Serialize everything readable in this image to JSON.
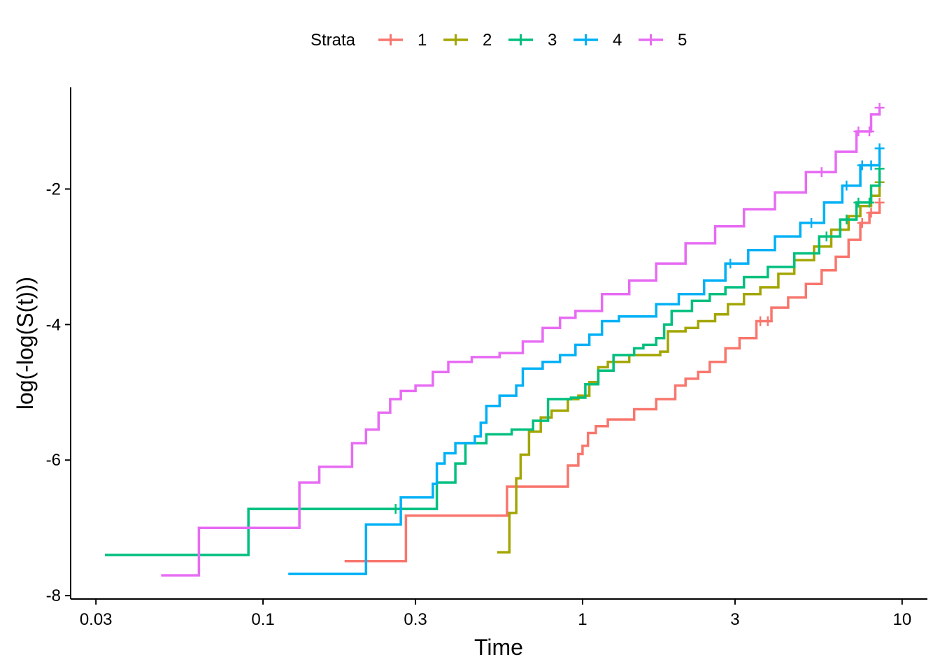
{
  "chart_data": {
    "type": "line",
    "step": true,
    "xlabel": "Time",
    "ylabel": "log(-log(S(t)))",
    "x_scale": "log10",
    "xlim": [
      0.025,
      12
    ],
    "ylim": [
      -8.05,
      -0.5
    ],
    "x_ticks": [
      0.03,
      0.1,
      0.3,
      1,
      3,
      10
    ],
    "x_tick_labels": [
      "0.03",
      "0.1",
      "0.3",
      "1",
      "3",
      "10"
    ],
    "y_ticks": [
      -8,
      -6,
      -4,
      -2
    ],
    "y_tick_labels": [
      "-8",
      "-6",
      "-4",
      "-2"
    ],
    "legend": {
      "title": "Strata",
      "position": "top",
      "entries": [
        "1",
        "2",
        "3",
        "4",
        "5"
      ]
    },
    "series": [
      {
        "name": "1",
        "color": "#F8766D",
        "points": [
          [
            0.18,
            -7.49
          ],
          [
            0.28,
            -6.82
          ],
          [
            0.58,
            -6.39
          ],
          [
            0.9,
            -6.08
          ],
          [
            0.97,
            -5.91
          ],
          [
            1.0,
            -5.79
          ],
          [
            1.04,
            -5.6
          ],
          [
            1.1,
            -5.5
          ],
          [
            1.2,
            -5.4
          ],
          [
            1.45,
            -5.25
          ],
          [
            1.7,
            -5.1
          ],
          [
            1.95,
            -4.9
          ],
          [
            2.1,
            -4.8
          ],
          [
            2.3,
            -4.7
          ],
          [
            2.5,
            -4.55
          ],
          [
            2.8,
            -4.35
          ],
          [
            3.1,
            -4.2
          ],
          [
            3.5,
            -3.95
          ],
          [
            3.9,
            -3.75
          ],
          [
            4.4,
            -3.6
          ],
          [
            5.0,
            -3.4
          ],
          [
            5.6,
            -3.2
          ],
          [
            6.2,
            -3.0
          ],
          [
            6.8,
            -2.75
          ],
          [
            7.4,
            -2.5
          ],
          [
            7.9,
            -2.35
          ],
          [
            8.5,
            -2.2
          ]
        ],
        "censor_x": [
          3.6,
          3.8,
          7.5,
          8.0,
          8.5
        ]
      },
      {
        "name": "2",
        "color": "#A3A500",
        "points": [
          [
            0.54,
            -7.36
          ],
          [
            0.59,
            -7.36
          ],
          [
            0.59,
            -6.78
          ],
          [
            0.62,
            -6.27
          ],
          [
            0.64,
            -5.92
          ],
          [
            0.68,
            -5.58
          ],
          [
            0.74,
            -5.37
          ],
          [
            0.8,
            -5.27
          ],
          [
            0.9,
            -5.1
          ],
          [
            0.97,
            -5.05
          ],
          [
            1.05,
            -4.85
          ],
          [
            1.12,
            -4.63
          ],
          [
            1.2,
            -4.55
          ],
          [
            1.4,
            -4.45
          ],
          [
            1.75,
            -4.4
          ],
          [
            1.85,
            -4.1
          ],
          [
            2.1,
            -4.05
          ],
          [
            2.3,
            -3.95
          ],
          [
            2.6,
            -3.85
          ],
          [
            2.85,
            -3.7
          ],
          [
            3.2,
            -3.55
          ],
          [
            3.6,
            -3.45
          ],
          [
            4.1,
            -3.25
          ],
          [
            4.6,
            -3.05
          ],
          [
            5.3,
            -2.85
          ],
          [
            6.0,
            -2.6
          ],
          [
            6.8,
            -2.4
          ],
          [
            7.4,
            -2.25
          ],
          [
            8.0,
            -2.1
          ],
          [
            8.5,
            -1.9
          ]
        ],
        "censor_x": [
          8.5
        ]
      },
      {
        "name": "3",
        "color": "#00BF7D",
        "points": [
          [
            0.032,
            -7.4
          ],
          [
            0.09,
            -7.4
          ],
          [
            0.09,
            -6.72
          ],
          [
            0.34,
            -6.72
          ],
          [
            0.35,
            -6.33
          ],
          [
            0.4,
            -6.05
          ],
          [
            0.43,
            -5.75
          ],
          [
            0.5,
            -5.62
          ],
          [
            0.6,
            -5.55
          ],
          [
            0.7,
            -5.42
          ],
          [
            0.78,
            -5.1
          ],
          [
            0.92,
            -5.08
          ],
          [
            1.02,
            -4.88
          ],
          [
            1.12,
            -4.68
          ],
          [
            1.25,
            -4.45
          ],
          [
            1.45,
            -4.35
          ],
          [
            1.55,
            -4.3
          ],
          [
            1.7,
            -4.2
          ],
          [
            1.8,
            -4.0
          ],
          [
            1.9,
            -3.8
          ],
          [
            2.2,
            -3.65
          ],
          [
            2.5,
            -3.55
          ],
          [
            2.8,
            -3.45
          ],
          [
            3.2,
            -3.3
          ],
          [
            3.8,
            -3.15
          ],
          [
            4.6,
            -2.95
          ],
          [
            5.5,
            -2.7
          ],
          [
            6.4,
            -2.45
          ],
          [
            7.2,
            -2.2
          ],
          [
            8.0,
            -1.95
          ],
          [
            8.5,
            -1.7
          ]
        ],
        "censor_x": [
          0.26,
          5.8,
          6.7,
          7.3,
          7.9,
          8.5
        ]
      },
      {
        "name": "4",
        "color": "#00B0F6",
        "points": [
          [
            0.12,
            -7.68
          ],
          [
            0.21,
            -7.68
          ],
          [
            0.21,
            -6.95
          ],
          [
            0.26,
            -6.95
          ],
          [
            0.27,
            -6.55
          ],
          [
            0.34,
            -6.35
          ],
          [
            0.35,
            -6.05
          ],
          [
            0.37,
            -5.9
          ],
          [
            0.4,
            -5.75
          ],
          [
            0.46,
            -5.65
          ],
          [
            0.48,
            -5.45
          ],
          [
            0.5,
            -5.2
          ],
          [
            0.55,
            -5.05
          ],
          [
            0.62,
            -4.9
          ],
          [
            0.65,
            -4.65
          ],
          [
            0.75,
            -4.55
          ],
          [
            0.85,
            -4.45
          ],
          [
            0.95,
            -4.3
          ],
          [
            1.05,
            -4.15
          ],
          [
            1.15,
            -3.95
          ],
          [
            1.3,
            -3.88
          ],
          [
            1.55,
            -3.88
          ],
          [
            1.7,
            -3.7
          ],
          [
            2.0,
            -3.55
          ],
          [
            2.4,
            -3.35
          ],
          [
            2.8,
            -3.1
          ],
          [
            3.3,
            -2.9
          ],
          [
            4.0,
            -2.7
          ],
          [
            4.8,
            -2.5
          ],
          [
            5.7,
            -2.2
          ],
          [
            6.5,
            -1.95
          ],
          [
            7.4,
            -1.65
          ],
          [
            8.5,
            -1.4
          ]
        ],
        "censor_x": [
          2.9,
          5.2,
          6.7,
          7.5,
          8.0,
          8.5
        ]
      },
      {
        "name": "5",
        "color": "#E76BF3",
        "points": [
          [
            0.048,
            -7.7
          ],
          [
            0.063,
            -7.7
          ],
          [
            0.063,
            -7.0
          ],
          [
            0.13,
            -7.0
          ],
          [
            0.13,
            -6.33
          ],
          [
            0.15,
            -6.1
          ],
          [
            0.19,
            -5.75
          ],
          [
            0.21,
            -5.55
          ],
          [
            0.23,
            -5.3
          ],
          [
            0.25,
            -5.1
          ],
          [
            0.27,
            -4.98
          ],
          [
            0.3,
            -4.9
          ],
          [
            0.34,
            -4.7
          ],
          [
            0.38,
            -4.55
          ],
          [
            0.45,
            -4.48
          ],
          [
            0.55,
            -4.42
          ],
          [
            0.65,
            -4.25
          ],
          [
            0.75,
            -4.05
          ],
          [
            0.85,
            -3.9
          ],
          [
            0.95,
            -3.8
          ],
          [
            1.15,
            -3.55
          ],
          [
            1.4,
            -3.35
          ],
          [
            1.7,
            -3.1
          ],
          [
            2.1,
            -2.8
          ],
          [
            2.6,
            -2.55
          ],
          [
            3.2,
            -2.3
          ],
          [
            4.0,
            -2.05
          ],
          [
            5.0,
            -1.75
          ],
          [
            6.2,
            -1.45
          ],
          [
            7.2,
            -1.15
          ],
          [
            8.0,
            -0.9
          ],
          [
            8.5,
            -0.8
          ]
        ],
        "censor_x": [
          5.6,
          7.3,
          7.9,
          8.5
        ]
      }
    ]
  }
}
